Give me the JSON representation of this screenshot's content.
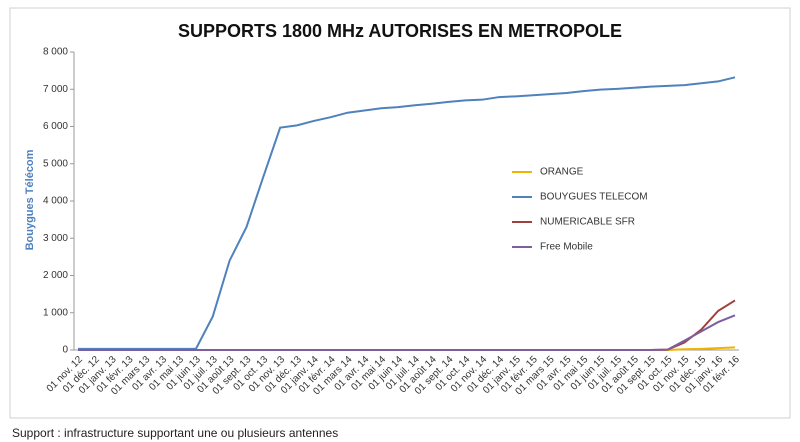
{
  "chart_data": {
    "type": "line",
    "title": "SUPPORTS 1800 MHz AUTORISES EN METROPOLE",
    "y_label": "Bouygues Télécom",
    "footnote": "Support : infrastructure supportant une ou plusieurs antennes",
    "categories": [
      "01 nov. 12",
      "01 déc. 12",
      "01 janv. 13",
      "01 févr. 13",
      "01 mars 13",
      "01 avr. 13",
      "01 mai 13",
      "01 juin 13",
      "01 juil. 13",
      "01 août 13",
      "01 sept. 13",
      "01 oct. 13",
      "01 nov. 13",
      "01 déc. 13",
      "01 janv. 14",
      "01 févr. 14",
      "01 mars 14",
      "01 avr. 14",
      "01 mai 14",
      "01 juin 14",
      "01 juil. 14",
      "01 août 14",
      "01 sept. 14",
      "01 oct. 14",
      "01 nov. 14",
      "01 déc. 14",
      "01 janv. 15",
      "01 févr. 15",
      "01 mars 15",
      "01 avr. 15",
      "01 mai 15",
      "01 juin 15",
      "01 juil. 15",
      "01 août 15",
      "01 sept. 15",
      "01 oct. 15",
      "01 nov. 15",
      "01 déc. 15",
      "01 janv. 16",
      "01 févr. 16"
    ],
    "series": [
      {
        "name": "ORANGE",
        "color": "#f0b400",
        "values": [
          0,
          0,
          0,
          0,
          0,
          0,
          0,
          0,
          0,
          0,
          0,
          0,
          0,
          0,
          0,
          0,
          0,
          0,
          0,
          0,
          0,
          0,
          0,
          0,
          0,
          0,
          0,
          0,
          0,
          0,
          0,
          0,
          0,
          0,
          0,
          0,
          20,
          30,
          50,
          70
        ]
      },
      {
        "name": "BOUYGUES TELECOM",
        "color": "#4f81bd",
        "values": [
          30,
          30,
          30,
          30,
          30,
          30,
          30,
          30,
          900,
          2400,
          3300,
          4650,
          5970,
          6030,
          6150,
          6250,
          6370,
          6430,
          6490,
          6520,
          6570,
          6610,
          6660,
          6700,
          6720,
          6790,
          6810,
          6840,
          6870,
          6900,
          6950,
          6990,
          7010,
          7040,
          7070,
          7090,
          7110,
          7160,
          7210,
          7320
        ]
      },
      {
        "name": "NUMERICABLE SFR",
        "color": "#a0403c",
        "values": [
          0,
          0,
          0,
          0,
          0,
          0,
          0,
          0,
          0,
          0,
          0,
          0,
          0,
          0,
          0,
          0,
          0,
          0,
          0,
          0,
          0,
          0,
          0,
          0,
          0,
          0,
          0,
          0,
          0,
          0,
          0,
          0,
          0,
          0,
          0,
          10,
          200,
          550,
          1050,
          1330
        ]
      },
      {
        "name": "Free Mobile",
        "color": "#7d5fa0",
        "values": [
          0,
          0,
          0,
          0,
          0,
          0,
          0,
          0,
          0,
          0,
          0,
          0,
          0,
          0,
          0,
          0,
          0,
          0,
          0,
          0,
          0,
          0,
          0,
          0,
          0,
          0,
          0,
          0,
          0,
          0,
          0,
          0,
          0,
          0,
          0,
          10,
          250,
          500,
          750,
          930
        ]
      }
    ],
    "ylim": [
      0,
      8000
    ],
    "yticks": [
      0,
      {
        "value": 1000,
        "label": "1 000"
      },
      {
        "value": 2000,
        "label": "2 000"
      },
      {
        "value": 3000,
        "label": "3 000"
      },
      {
        "value": 4000,
        "label": "4 000"
      },
      {
        "value": 5000,
        "label": "5 000"
      },
      {
        "value": 6000,
        "label": "6 000"
      },
      {
        "value": 7000,
        "label": "7 000"
      },
      {
        "value": 8000,
        "label": "8 000"
      }
    ],
    "grid": false,
    "legend": "right"
  }
}
